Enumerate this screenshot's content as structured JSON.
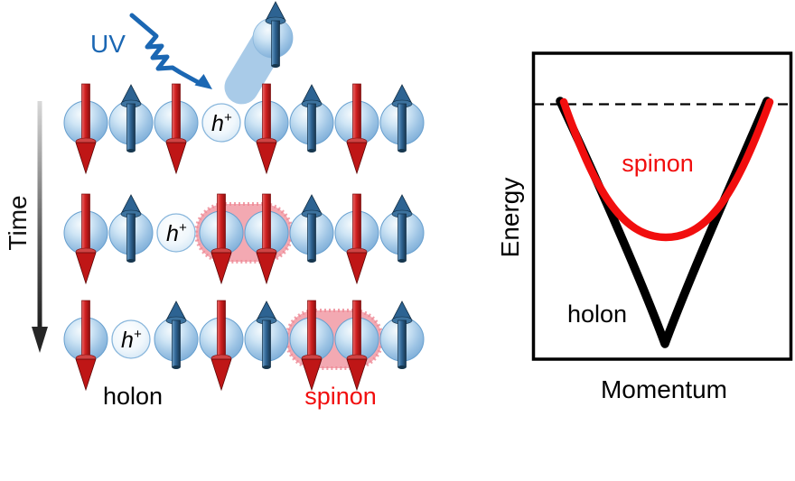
{
  "colors": {
    "spinon_red": "#f10e0e",
    "holon_black": "#000000",
    "uv_blue": "#1b67b3",
    "sphere_blue": "#a9cbe8",
    "spin_up_blue": "#2d6392",
    "spin_down_red": "#bf1616",
    "blob_pink": "#f2a2ab"
  },
  "left": {
    "uv_label": "UV",
    "time_label": "Time",
    "hole_label": "h",
    "hole_sup": "+",
    "holon_caption": "holon",
    "spinon_caption": "spinon",
    "rows": [
      {
        "sites": [
          "down",
          "up",
          "down",
          "hole",
          "down",
          "up",
          "down",
          "up"
        ],
        "spinon_pair": null
      },
      {
        "sites": [
          "down",
          "up",
          "hole",
          "down",
          "down",
          "up",
          "down",
          "up"
        ],
        "spinon_pair": [
          3,
          4
        ]
      },
      {
        "sites": [
          "down",
          "hole",
          "up",
          "down",
          "up",
          "down",
          "down",
          "up"
        ],
        "spinon_pair": [
          5,
          6
        ]
      }
    ]
  },
  "right": {
    "ylabel": "Energy",
    "xlabel": "Momentum",
    "spinon_label": "spinon",
    "holon_label": "holon"
  },
  "chart_data": {
    "type": "line",
    "title": "",
    "xlabel": "Momentum",
    "ylabel": "Energy",
    "x": [
      -1,
      -0.75,
      -0.5,
      -0.25,
      0,
      0.25,
      0.5,
      0.75,
      1
    ],
    "series": [
      {
        "name": "spinon",
        "color": "#f10e0e",
        "values": [
          0,
          -0.21,
          -0.39,
          -0.51,
          -0.55,
          -0.51,
          -0.39,
          -0.21,
          0
        ]
      },
      {
        "name": "holon",
        "color": "#000000",
        "values": [
          0,
          -0.33,
          -0.63,
          -0.87,
          -1.0,
          -0.87,
          -0.63,
          -0.33,
          0
        ]
      }
    ],
    "ylim": [
      -1.05,
      0.3
    ],
    "axes": {
      "ticks": false,
      "frame": true,
      "grid": false
    },
    "legend_position": "inline-labels",
    "annotations": [
      "dashed horizontal reference line at energy = 0 spanning full width"
    ]
  }
}
